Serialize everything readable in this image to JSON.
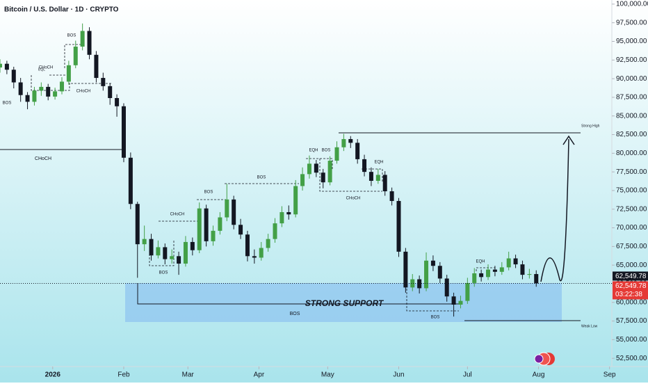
{
  "chart_data": {
    "type": "candlestick",
    "title": "Bitcoin / U.S. Dollar · 1D · CRYPTO",
    "up_color": "#43a047",
    "down_color": "#131722",
    "xlim": [
      "2025-12-09",
      "2026-09-02"
    ],
    "ylim": [
      51400,
      100550
    ],
    "yticks": [
      {
        "value": 52500,
        "label": "52,500.00"
      },
      {
        "value": 55000,
        "label": "55,000.00"
      },
      {
        "value": 57500,
        "label": "57,500.00"
      },
      {
        "value": 60000,
        "label": "60,000.00"
      },
      {
        "value": 62500,
        "label": "62,500.00"
      },
      {
        "value": 65000,
        "label": "65,000.00"
      },
      {
        "value": 67500,
        "label": "67,500.00"
      },
      {
        "value": 70000,
        "label": "70,000.00"
      },
      {
        "value": 72500,
        "label": "72,500.00"
      },
      {
        "value": 75000,
        "label": "75,000.00"
      },
      {
        "value": 77500,
        "label": "77,500.00"
      },
      {
        "value": 80000,
        "label": "80,000.00"
      },
      {
        "value": 82500,
        "label": "82,500.00"
      },
      {
        "value": 85000,
        "label": "85,000.00"
      },
      {
        "value": 87500,
        "label": "87,500.00"
      },
      {
        "value": 90000,
        "label": "90,000.00"
      },
      {
        "value": 92500,
        "label": "92,500.00"
      },
      {
        "value": 95000,
        "label": "95,000.00"
      },
      {
        "value": 97500,
        "label": "97,500.00"
      },
      {
        "value": 100000,
        "label": "100,000.00"
      }
    ],
    "xticks": [
      {
        "value": "2026-01-01",
        "label": "2026"
      },
      {
        "value": "2026-02-01",
        "label": "Feb"
      },
      {
        "value": "2026-03-01",
        "label": "Mar"
      },
      {
        "value": "2026-04-01",
        "label": "Apr"
      },
      {
        "value": "2026-05-01",
        "label": "May"
      },
      {
        "value": "2026-06-01",
        "label": "Jun"
      },
      {
        "value": "2026-07-01",
        "label": "Jul"
      },
      {
        "value": "2026-08-01",
        "label": "Aug"
      },
      {
        "value": "2026-09-01",
        "label": "Sep"
      }
    ],
    "x": [
      "2025-12-09",
      "2025-12-12",
      "2025-12-15",
      "2025-12-18",
      "2025-12-21",
      "2025-12-24",
      "2025-12-27",
      "2025-12-30",
      "2026-01-02",
      "2026-01-05",
      "2026-01-08",
      "2026-01-11",
      "2026-01-14",
      "2026-01-17",
      "2026-01-20",
      "2026-01-23",
      "2026-01-26",
      "2026-01-29",
      "2026-02-01",
      "2026-02-04",
      "2026-02-07",
      "2026-02-10",
      "2026-02-13",
      "2026-02-16",
      "2026-02-19",
      "2026-02-22",
      "2026-02-25",
      "2026-02-28",
      "2026-03-03",
      "2026-03-06",
      "2026-03-09",
      "2026-03-12",
      "2026-03-15",
      "2026-03-18",
      "2026-03-21",
      "2026-03-24",
      "2026-03-27",
      "2026-03-30",
      "2026-04-02",
      "2026-04-05",
      "2026-04-08",
      "2026-04-11",
      "2026-04-14",
      "2026-04-17",
      "2026-04-20",
      "2026-04-23",
      "2026-04-26",
      "2026-04-29",
      "2026-05-02",
      "2026-05-05",
      "2026-05-08",
      "2026-05-11",
      "2026-05-14",
      "2026-05-17",
      "2026-05-20",
      "2026-05-23",
      "2026-05-26",
      "2026-05-29",
      "2026-06-01",
      "2026-06-04",
      "2026-06-07",
      "2026-06-10",
      "2026-06-13",
      "2026-06-16",
      "2026-06-19",
      "2026-06-22",
      "2026-06-25",
      "2026-06-28",
      "2026-07-01",
      "2026-07-04",
      "2026-07-07",
      "2026-07-10",
      "2026-07-13",
      "2026-07-16",
      "2026-07-19",
      "2026-07-22",
      "2026-07-25",
      "2026-07-28",
      "2026-07-31"
    ],
    "candles": [
      [
        91500,
        92600,
        90800,
        92000
      ],
      [
        92000,
        92400,
        90600,
        91200
      ],
      [
        91200,
        91600,
        88700,
        89500
      ],
      [
        89500,
        90100,
        86900,
        87800
      ],
      [
        87800,
        88200,
        85900,
        86900
      ],
      [
        86900,
        88900,
        86400,
        88400
      ],
      [
        88400,
        89500,
        87700,
        88900
      ],
      [
        88900,
        89300,
        87100,
        87600
      ],
      [
        87600,
        88800,
        87200,
        88300
      ],
      [
        88300,
        90200,
        87900,
        89600
      ],
      [
        89600,
        92400,
        89200,
        91800
      ],
      [
        91800,
        95100,
        91400,
        94300
      ],
      [
        94300,
        97400,
        93800,
        96400
      ],
      [
        96400,
        96900,
        92600,
        93200
      ],
      [
        93200,
        93700,
        89500,
        90100
      ],
      [
        90100,
        90800,
        88400,
        89000
      ],
      [
        89000,
        89400,
        86500,
        87400
      ],
      [
        87400,
        87900,
        84900,
        86300
      ],
      [
        86300,
        86700,
        78800,
        79400
      ],
      [
        79400,
        80100,
        72500,
        73200
      ],
      [
        73200,
        73500,
        63300,
        67800
      ],
      [
        67800,
        70300,
        66900,
        68500
      ],
      [
        68500,
        69200,
        65600,
        66300
      ],
      [
        66300,
        68300,
        65900,
        67400
      ],
      [
        67400,
        67900,
        65100,
        65800
      ],
      [
        65800,
        67100,
        65200,
        66200
      ],
      [
        66200,
        66800,
        63700,
        65200
      ],
      [
        65200,
        68900,
        64800,
        68100
      ],
      [
        68100,
        68700,
        66300,
        67000
      ],
      [
        67000,
        73400,
        66600,
        72600
      ],
      [
        72600,
        73100,
        67500,
        68200
      ],
      [
        68200,
        70300,
        67600,
        69600
      ],
      [
        69600,
        72100,
        69100,
        71400
      ],
      [
        71400,
        75900,
        70900,
        73800
      ],
      [
        73800,
        74300,
        69800,
        70400
      ],
      [
        70400,
        71200,
        68500,
        69100
      ],
      [
        69100,
        69600,
        65500,
        66200
      ],
      [
        66200,
        67100,
        65200,
        66000
      ],
      [
        66000,
        68100,
        65600,
        67300
      ],
      [
        67300,
        69200,
        66800,
        68500
      ],
      [
        68500,
        71300,
        68000,
        70600
      ],
      [
        70600,
        72900,
        70100,
        72100
      ],
      [
        72100,
        73000,
        71100,
        71800
      ],
      [
        71800,
        76400,
        71400,
        75600
      ],
      [
        75600,
        78100,
        75000,
        77200
      ],
      [
        77200,
        79700,
        76600,
        78600
      ],
      [
        78600,
        79100,
        76800,
        77400
      ],
      [
        77400,
        77900,
        75300,
        76100
      ],
      [
        76100,
        79600,
        75700,
        79000
      ],
      [
        79000,
        81600,
        78600,
        80800
      ],
      [
        80800,
        82600,
        80300,
        81900
      ],
      [
        81900,
        82300,
        80700,
        81400
      ],
      [
        81400,
        81900,
        78600,
        79200
      ],
      [
        79200,
        79800,
        76900,
        77500
      ],
      [
        77500,
        78100,
        75600,
        76300
      ],
      [
        76300,
        77900,
        75900,
        77100
      ],
      [
        77100,
        77600,
        74300,
        74900
      ],
      [
        74900,
        75400,
        73000,
        73600
      ],
      [
        73600,
        74000,
        66100,
        66800
      ],
      [
        66800,
        67300,
        61300,
        62000
      ],
      [
        62000,
        63800,
        61500,
        63100
      ],
      [
        63100,
        63600,
        61200,
        61900
      ],
      [
        61900,
        66700,
        61500,
        65600
      ],
      [
        65600,
        66300,
        64200,
        64900
      ],
      [
        64900,
        65400,
        62600,
        63200
      ],
      [
        63200,
        63700,
        60100,
        60800
      ],
      [
        60800,
        61300,
        58100,
        59700
      ],
      [
        59700,
        60900,
        59200,
        60200
      ],
      [
        60200,
        63300,
        59800,
        62600
      ],
      [
        62600,
        64600,
        62100,
        63900
      ],
      [
        63900,
        64400,
        62800,
        63400
      ],
      [
        63400,
        65100,
        63000,
        64400
      ],
      [
        64400,
        64900,
        63500,
        64100
      ],
      [
        64100,
        65400,
        63700,
        64700
      ],
      [
        64700,
        66800,
        64300,
        65900
      ],
      [
        65900,
        66400,
        64600,
        65100
      ],
      [
        65100,
        65600,
        63100,
        63700
      ],
      [
        63700,
        64500,
        63200,
        63800
      ],
      [
        63800,
        64300,
        62100,
        62549.78
      ]
    ],
    "last_price": {
      "value": 62549.78,
      "label": "62,549.78"
    },
    "countdown": "03:22:38",
    "annotations": [
      "BOS",
      "CHoCH",
      "EQL",
      "BOS",
      "CHoCH",
      "CHoCH",
      "CHoCH",
      "BOS",
      "BOS",
      "BOS",
      "EQH",
      "BOS",
      "EQH",
      "CHoCH",
      "Strong High",
      "EQH",
      "BOS",
      "BOS",
      "STRONG SUPPORT",
      "Weak Low"
    ]
  }
}
